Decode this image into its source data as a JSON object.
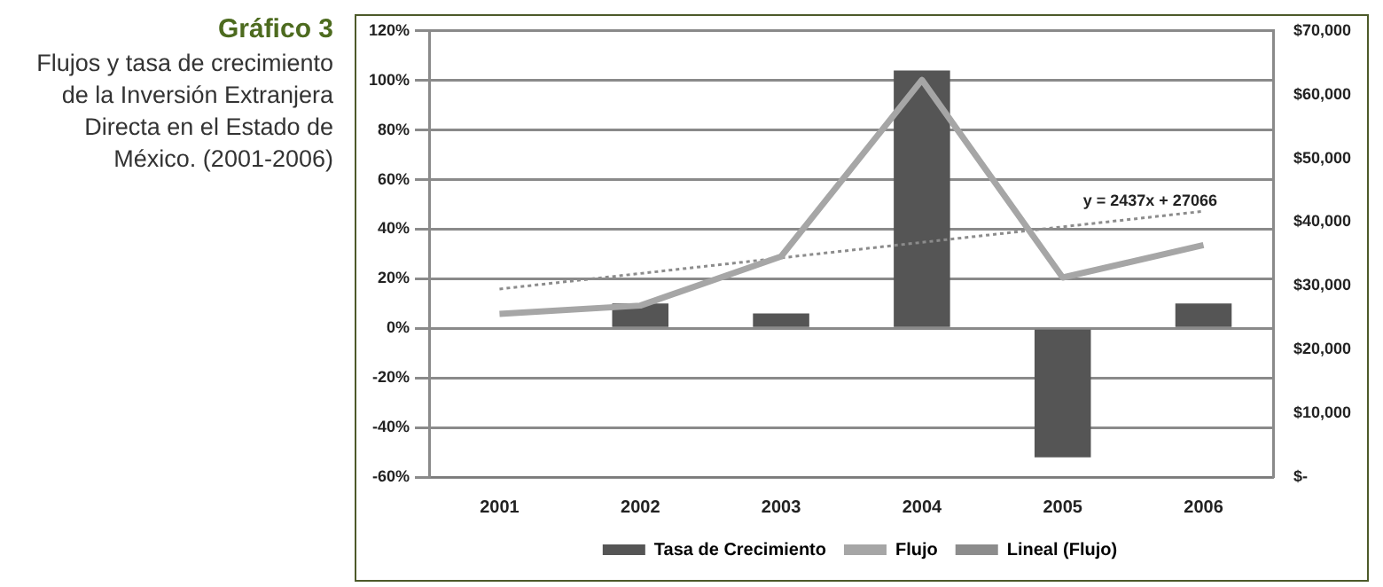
{
  "chart_data": {
    "type": "bar",
    "title": "Gráfico 3",
    "subtitle": "Flujos  y tasa de crecimiento de la Inversión Extranjera Directa en el Estado de México. (2001-2006)",
    "categories": [
      "2001",
      "2002",
      "2003",
      "2004",
      "2005",
      "2006"
    ],
    "series": [
      {
        "name": "Tasa de Crecimiento",
        "color": "#555555",
        "values": [
          null,
          10,
          6,
          104,
          -52,
          10
        ]
      },
      {
        "name": "Flujo",
        "type": "line",
        "axis": "y2",
        "color": "#a6a6a6",
        "values": [
          25600,
          26900,
          34600,
          62300,
          31300,
          36400
        ]
      },
      {
        "name": "Lineal (Flujo)",
        "type": "line",
        "axis": "y2",
        "color": "#8c8c8c",
        "line_style": "dotted",
        "values": [
          29500,
          null,
          null,
          null,
          null,
          41700
        ]
      }
    ],
    "ylim": [
      -60,
      120
    ],
    "yticks": [
      {
        "value": -60,
        "label": "-60%"
      },
      {
        "value": -40,
        "label": "-40%"
      },
      {
        "value": -20,
        "label": "-20%"
      },
      {
        "value": 0,
        "label": "0%"
      },
      {
        "value": 20,
        "label": "20%"
      },
      {
        "value": 40,
        "label": "40%"
      },
      {
        "value": 60,
        "label": "60%"
      },
      {
        "value": 80,
        "label": "80%"
      },
      {
        "value": 100,
        "label": "100%"
      },
      {
        "value": 120,
        "label": "120%"
      }
    ],
    "y2lim": [
      0,
      70000
    ],
    "y2ticks": [
      {
        "value": 0,
        "label": "$-"
      },
      {
        "value": 10000,
        "label": "$10,000"
      },
      {
        "value": 20000,
        "label": "$20,000"
      },
      {
        "value": 30000,
        "label": "$30,000"
      },
      {
        "value": 40000,
        "label": "$40,000"
      },
      {
        "value": 50000,
        "label": "$50,000"
      },
      {
        "value": 60000,
        "label": "$60,000"
      },
      {
        "value": 70000,
        "label": "$70,000"
      }
    ],
    "annotations": [
      "y = 2437x + 27066"
    ],
    "grid": "y",
    "legend": "bottom",
    "marker": "none"
  }
}
